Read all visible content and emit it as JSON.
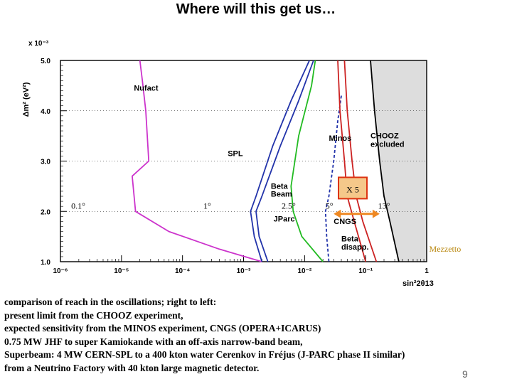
{
  "title": "Where will this get us…",
  "chart_data": {
    "type": "line",
    "xscale": "log",
    "xlim": [
      1e-06,
      1
    ],
    "ylim": [
      1.0,
      5.0
    ],
    "xlabel": "sin²2θ13",
    "ylabel": "Δm² (eV²)",
    "y_multiplier": "x 10⁻³",
    "x_ticks": [
      {
        "value": 1e-06,
        "label": "10⁻⁶"
      },
      {
        "value": 1e-05,
        "label": "10⁻⁵"
      },
      {
        "value": 0.0001,
        "label": "10⁻⁴"
      },
      {
        "value": 0.001,
        "label": "10⁻³"
      },
      {
        "value": 0.01,
        "label": "10⁻²"
      },
      {
        "value": 0.1,
        "label": "10⁻¹"
      },
      {
        "value": 1,
        "label": "1"
      }
    ],
    "y_ticks": [
      {
        "value": 1.0,
        "label": "1.0"
      },
      {
        "value": 2.0,
        "label": "2.0"
      },
      {
        "value": 3.0,
        "label": "3.0"
      },
      {
        "value": 4.0,
        "label": "4.0"
      },
      {
        "value": 5.0,
        "label": "5.0"
      }
    ],
    "series": [
      {
        "name": "Nufact",
        "color": "#cc33cc",
        "style": "solid",
        "x": [
          2e-05,
          2.2e-05,
          2.5e-05,
          2.8e-05,
          1.5e-05,
          1.7e-05,
          6e-05,
          0.0004,
          0.002
        ],
        "y": [
          5.0,
          4.6,
          4.0,
          3.0,
          2.7,
          2.0,
          1.6,
          1.25,
          1.0
        ]
      },
      {
        "name": "SPL",
        "color": "#2233aa",
        "style": "solid",
        "x": [
          0.012,
          0.006,
          0.003,
          0.0016,
          0.0013,
          0.0015,
          0.002
        ],
        "y": [
          5.0,
          4.2,
          3.3,
          2.3,
          2.0,
          1.5,
          1.0
        ]
      },
      {
        "name": "Beta Beam",
        "color": "#2233aa",
        "style": "solid",
        "x": [
          0.014,
          0.008,
          0.004,
          0.002,
          0.0016,
          0.0018,
          0.0025
        ],
        "y": [
          5.0,
          4.2,
          3.3,
          2.3,
          2.0,
          1.5,
          1.0
        ]
      },
      {
        "name": "JParc",
        "color": "#22bb22",
        "style": "solid",
        "x": [
          0.015,
          0.013,
          0.008,
          0.006,
          0.0065,
          0.009,
          0.02
        ],
        "y": [
          5.0,
          4.5,
          3.5,
          2.5,
          2.0,
          1.5,
          1.0
        ]
      },
      {
        "name": "Beta disapp.",
        "color": "#2233aa",
        "style": "dashed",
        "x": [
          0.04,
          0.035,
          0.03,
          0.025,
          0.022,
          0.023,
          0.025
        ],
        "y": [
          4.3,
          3.8,
          3.0,
          2.3,
          2.0,
          1.5,
          1.0
        ]
      },
      {
        "name": "Minos",
        "color": "#cc2222",
        "style": "solid",
        "x": [
          0.045,
          0.05,
          0.06,
          0.07,
          0.09,
          0.15
        ],
        "y": [
          5.0,
          4.0,
          3.0,
          2.3,
          1.8,
          1.0
        ]
      },
      {
        "name": "CNGS",
        "color": "#cc2222",
        "style": "solid",
        "x": [
          0.035,
          0.038,
          0.045,
          0.05,
          0.065,
          0.1
        ],
        "y": [
          5.0,
          4.0,
          3.0,
          2.3,
          1.8,
          1.0
        ]
      },
      {
        "name": "CHOOZ excluded",
        "color": "#000000",
        "style": "solid",
        "fill": "#dddddd",
        "x": [
          0.12,
          0.14,
          0.17,
          0.2,
          0.25,
          0.35
        ],
        "y": [
          5.0,
          4.0,
          3.0,
          2.3,
          1.8,
          1.0
        ]
      }
    ],
    "curve_labels": [
      {
        "text": "Nufact",
        "x": 1.6e-05,
        "y": 4.4
      },
      {
        "text": "SPL",
        "x": 0.00055,
        "y": 3.1
      },
      {
        "text": "Beta",
        "x": 0.0028,
        "y": 2.45
      },
      {
        "text": "Beam",
        "x": 0.0028,
        "y": 2.29
      },
      {
        "text": "JParc",
        "x": 0.0031,
        "y": 1.8
      },
      {
        "text": "Minos",
        "x": 0.025,
        "y": 3.4
      },
      {
        "text": "CHOOZ",
        "x": 0.12,
        "y": 3.45
      },
      {
        "text": "excluded",
        "x": 0.12,
        "y": 3.28
      },
      {
        "text": "CNGS",
        "x": 0.03,
        "y": 1.75
      },
      {
        "text": "Beta",
        "x": 0.04,
        "y": 1.4
      },
      {
        "text": "disapp.",
        "x": 0.04,
        "y": 1.24
      }
    ],
    "angle_markers": [
      {
        "label": "0.1°",
        "x": 1.5e-06,
        "y": 2.05
      },
      {
        "label": "1°",
        "x": 0.00022,
        "y": 2.05
      },
      {
        "label": "2.5°",
        "x": 0.0042,
        "y": 2.05
      },
      {
        "label": "5°",
        "x": 0.022,
        "y": 2.05
      },
      {
        "label": "13°",
        "x": 0.16,
        "y": 2.05
      }
    ],
    "factor_box": {
      "label": "X 5",
      "x": 0.04,
      "y": 2.45
    },
    "range_arrow": {
      "x1": 0.03,
      "x2": 0.17,
      "y": 1.95
    },
    "annotation": {
      "text": "Mezzetto",
      "x": 1.1,
      "y": 1.2
    },
    "colors": {
      "accent_box": "#f5c88a",
      "box_border": "#dd3311",
      "arrow": "#ee8822",
      "chooz_fill": "#dddddd"
    }
  },
  "caption": [
    "comparison of reach in the  oscillations; right to left:",
    "present limit from the CHOOZ experiment,",
    "expected sensitivity from the MINOS experiment, CNGS (OPERA+ICARUS)",
    "0.75 MW JHF to super Kamiokande with an off-axis narrow-band beam,",
    "Superbeam: 4 MW CERN-SPL to a 400 kton water Cerenkov  in  Fréjus (J-PARC phase II similar)",
    "from a Neutrino Factory with 40 kton large magnetic detector."
  ],
  "page_number": "9"
}
